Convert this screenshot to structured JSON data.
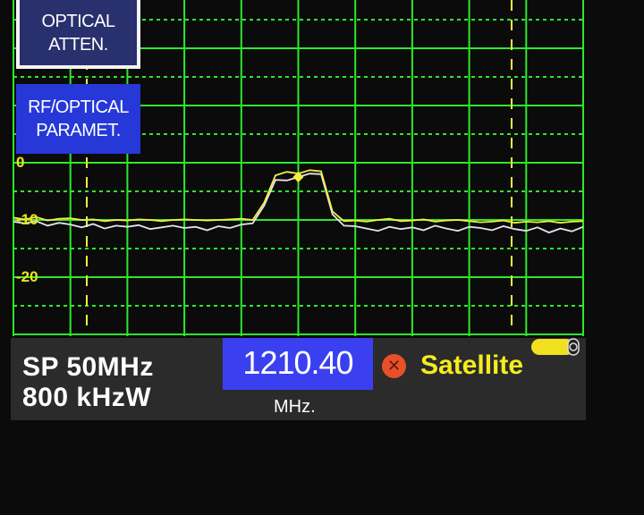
{
  "menu": {
    "optical_atten": [
      "OPTICAL",
      "ATTEN."
    ],
    "rf_optical_param": [
      "RF/OPTICAL",
      "PARAMET."
    ]
  },
  "axis": {
    "y_ticks": [
      "0",
      "-10",
      "-20"
    ]
  },
  "status": {
    "span": "SP 50MHz",
    "rbw": "800 kHzW",
    "center_frequency": "1210.40",
    "frequency_unit": "MHz.",
    "band": "Satellite",
    "lock_status_icon": "x-circle-icon",
    "battery_icon": "battery-icon"
  },
  "colors": {
    "grid": "#2ee82e",
    "trace": "#f2ee40",
    "trace_secondary": "#e8e0f0",
    "marker_lines": "#f2ee40",
    "freq_box": "#3a40f0",
    "band_text": "#f4ec20"
  },
  "chart_data": {
    "type": "line",
    "xlabel": "MHz.",
    "xlim": [
      1185.4,
      1235.4
    ],
    "ylim": [
      -30,
      28
    ],
    "y_ticks": [
      0,
      -10,
      -20
    ],
    "grid": true,
    "center": 1210.4,
    "span_mhz": 50,
    "marker": {
      "x": 1210.4,
      "y": -2.5
    },
    "series": [
      {
        "values": [
          -9.6,
          -9.9,
          -9.5,
          -10.1,
          -9.8,
          -9.7,
          -10.0,
          -9.9,
          -10.2,
          -10.0,
          -10.1,
          -9.9,
          -10.0,
          -10.2,
          -10.0,
          -9.9,
          -10.0,
          -10.1,
          -10.0,
          -9.9,
          -9.8,
          -10.0,
          -7.0,
          -2.2,
          -1.6,
          -1.9,
          -1.3,
          -1.5,
          -8.5,
          -10.2,
          -10.1,
          -10.3,
          -10.0,
          -9.8,
          -10.2,
          -10.1,
          -9.9,
          -10.3,
          -10.1,
          -10.0,
          -10.2,
          -10.4,
          -10.3,
          -10.1,
          -10.5,
          -10.3,
          -10.4,
          -10.2,
          -10.5,
          -10.3,
          -10.2
        ]
      },
      {
        "values": [
          -10.3,
          -10.6,
          -10.2,
          -11.0,
          -10.5,
          -10.8,
          -11.3,
          -10.7,
          -11.5,
          -11.0,
          -11.2,
          -10.9,
          -11.6,
          -11.3,
          -11.0,
          -11.4,
          -11.2,
          -11.8,
          -11.1,
          -11.4,
          -10.8,
          -10.6,
          -7.5,
          -3.0,
          -3.1,
          -2.5,
          -1.9,
          -2.0,
          -9.0,
          -11.0,
          -11.1,
          -11.5,
          -11.9,
          -11.2,
          -11.6,
          -11.3,
          -11.8,
          -11.0,
          -11.5,
          -11.9,
          -11.2,
          -11.4,
          -11.8,
          -11.1,
          -11.6,
          -11.9,
          -11.3,
          -12.2,
          -11.5,
          -12.0,
          -11.2
        ]
      }
    ]
  }
}
